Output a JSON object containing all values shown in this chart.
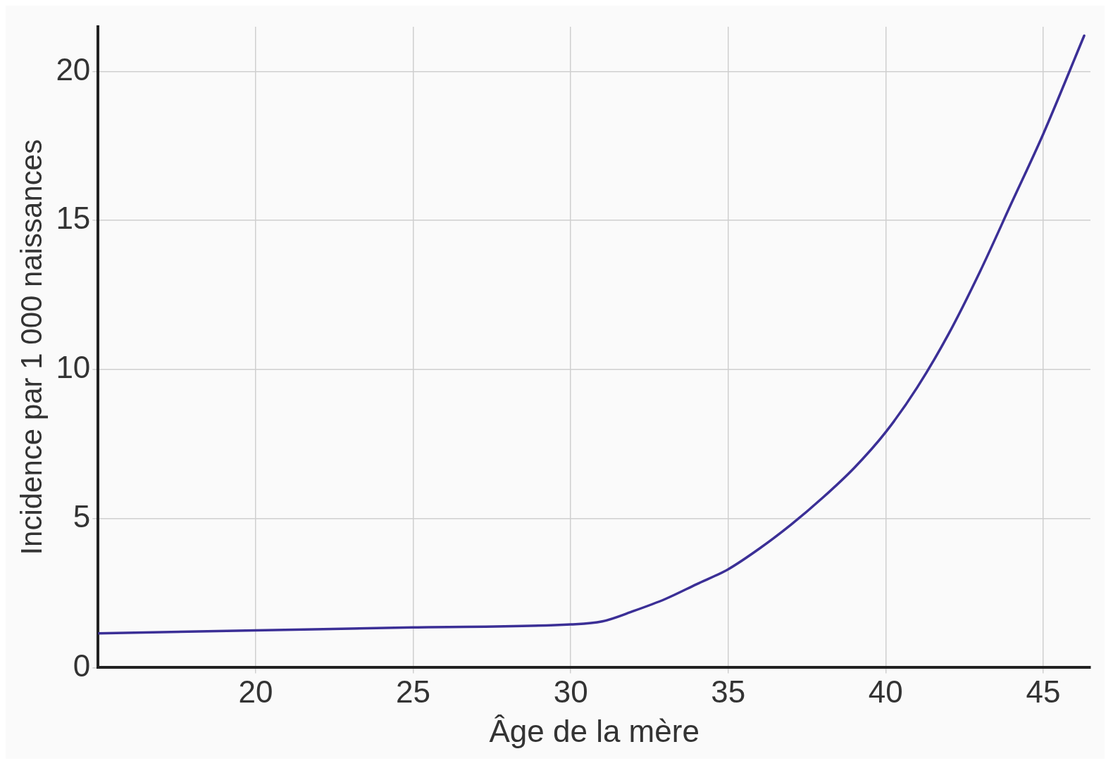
{
  "chart_data": {
    "type": "line",
    "xlabel": "Âge de la mère",
    "ylabel": "Incidence par 1 000 naissances",
    "x": [
      15,
      20,
      25,
      30,
      31,
      32,
      33,
      34,
      35,
      36,
      37,
      38,
      39,
      40,
      41,
      42,
      43,
      44,
      45,
      46.3
    ],
    "series": [
      {
        "color": "#3b2f96",
        "values": [
          1.15,
          1.25,
          1.35,
          1.45,
          1.55,
          1.9,
          2.3,
          2.8,
          3.3,
          4.0,
          4.8,
          5.7,
          6.7,
          7.9,
          9.4,
          11.2,
          13.3,
          15.6,
          17.9,
          21.2
        ]
      }
    ],
    "xlim": [
      15,
      46.5
    ],
    "ylim": [
      0,
      21.5
    ],
    "xticks": [
      20,
      25,
      30,
      35,
      40,
      45
    ],
    "yticks": [
      0,
      5,
      10,
      15,
      20
    ],
    "grid": true,
    "legend": false,
    "marker": "none",
    "line_style": "solid"
  }
}
